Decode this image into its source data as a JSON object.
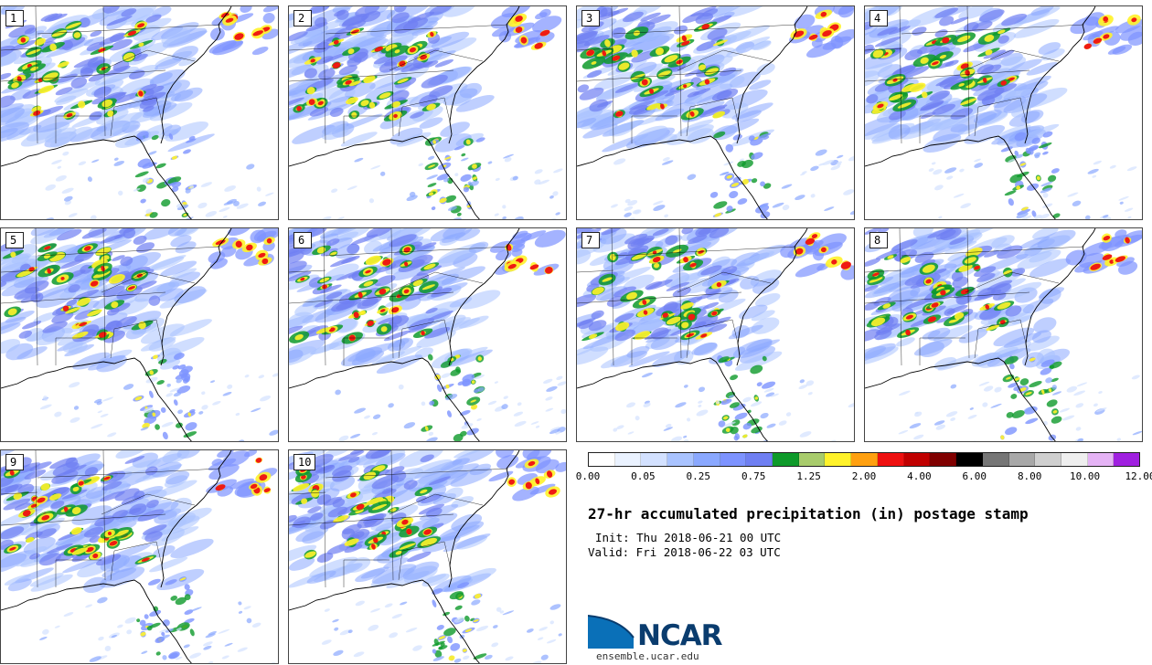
{
  "panels": [
    {
      "label": "1",
      "seed": 11
    },
    {
      "label": "2",
      "seed": 23
    },
    {
      "label": "3",
      "seed": 37
    },
    {
      "label": "4",
      "seed": 41
    },
    {
      "label": "5",
      "seed": 53
    },
    {
      "label": "6",
      "seed": 67
    },
    {
      "label": "7",
      "seed": 71
    },
    {
      "label": "8",
      "seed": 83
    },
    {
      "label": "9",
      "seed": 97
    },
    {
      "label": "10",
      "seed": 109
    }
  ],
  "colorbar": {
    "colors": [
      "#ffffff",
      "#eaf2ff",
      "#d3e1ff",
      "#a9c3ff",
      "#8aa8ff",
      "#7d93ff",
      "#6f7ff2",
      "#0e9a2a",
      "#a8cc6c",
      "#fff22a",
      "#ffa010",
      "#ee1010",
      "#c00000",
      "#800000",
      "#000000",
      "#767676",
      "#a8a8a8",
      "#cfcfcf",
      "#efefef",
      "#e5b3f5",
      "#a020e0"
    ],
    "tick_labels": [
      "0.00",
      "0.05",
      "0.25",
      "0.75",
      "1.25",
      "2.00",
      "4.00",
      "6.00",
      "8.00",
      "10.00",
      "12.00"
    ]
  },
  "title": "27-hr accumulated precipitation (in) postage stamp",
  "init": "Init: Thu 2018-06-21 00 UTC",
  "valid": "Valid: Fri 2018-06-22 03 UTC",
  "logo": {
    "text": "NCAR",
    "url": "ensemble.ucar.edu",
    "color": "#0a3c6e",
    "accent": "#0a70b8"
  }
}
